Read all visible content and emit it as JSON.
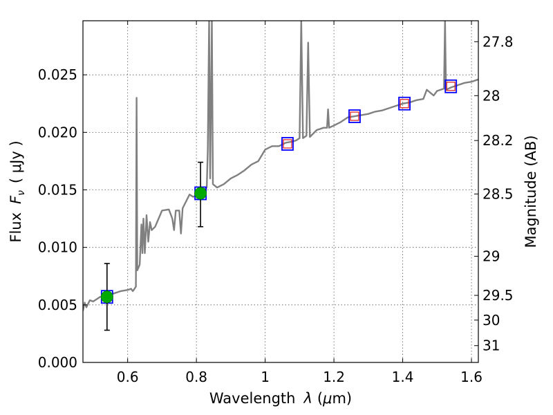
{
  "chart_data": {
    "type": "scatter",
    "xlabel_text": "Wavelength",
    "xlabel_symbol": "λ",
    "xlabel_unit_open": "(",
    "xlabel_unit_mu": "μ",
    "xlabel_unit_rest": "m)",
    "ylabel_text": "Flux",
    "ylabel_symbol": "F",
    "ylabel_sub": "ν",
    "ylabel_unit": "( μJy )",
    "y2label": "Magnitude (AB)",
    "xlim": [
      0.47,
      1.62
    ],
    "ylim": [
      0.0,
      0.0297
    ],
    "grid": true,
    "x_ticks": [
      {
        "value": 0.6,
        "label": "0.6"
      },
      {
        "value": 0.8,
        "label": "0.8"
      },
      {
        "value": 1.0,
        "label": "1"
      },
      {
        "value": 1.2,
        "label": "1.2"
      },
      {
        "value": 1.4,
        "label": "1.4"
      },
      {
        "value": 1.6,
        "label": "1.6"
      }
    ],
    "y_ticks": [
      {
        "value": 0.0,
        "label": "0.000"
      },
      {
        "value": 0.005,
        "label": "0.005"
      },
      {
        "value": 0.01,
        "label": "0.010"
      },
      {
        "value": 0.015,
        "label": "0.015"
      },
      {
        "value": 0.02,
        "label": "0.020"
      },
      {
        "value": 0.025,
        "label": "0.025"
      }
    ],
    "y2_ticks": [
      {
        "label": "27.8",
        "flux": 0.02788
      },
      {
        "label": "28",
        "flux": 0.02319
      },
      {
        "label": "28.2",
        "flux": 0.01929
      },
      {
        "label": "28.5",
        "flux": 0.01464
      },
      {
        "label": "29",
        "flux": 0.00923
      },
      {
        "label": "29.5",
        "flux": 0.00583
      },
      {
        "label": "30",
        "flux": 0.00368
      },
      {
        "label": "31",
        "flux": 0.00146
      }
    ],
    "template_spectrum": {
      "color": "#808080",
      "points": [
        [
          0.47,
          0.0045
        ],
        [
          0.475,
          0.0052
        ],
        [
          0.48,
          0.0048
        ],
        [
          0.49,
          0.0054
        ],
        [
          0.5,
          0.0053
        ],
        [
          0.52,
          0.0057
        ],
        [
          0.54,
          0.0058
        ],
        [
          0.56,
          0.006
        ],
        [
          0.58,
          0.0062
        ],
        [
          0.6,
          0.0063
        ],
        [
          0.61,
          0.0064
        ],
        [
          0.615,
          0.0062
        ],
        [
          0.62,
          0.0064
        ],
        [
          0.624,
          0.0066
        ],
        [
          0.626,
          0.023
        ],
        [
          0.628,
          0.008
        ],
        [
          0.635,
          0.0085
        ],
        [
          0.64,
          0.012
        ],
        [
          0.643,
          0.0095
        ],
        [
          0.646,
          0.0125
        ],
        [
          0.65,
          0.0095
        ],
        [
          0.655,
          0.0128
        ],
        [
          0.66,
          0.0105
        ],
        [
          0.665,
          0.0122
        ],
        [
          0.67,
          0.0115
        ],
        [
          0.68,
          0.0118
        ],
        [
          0.69,
          0.0125
        ],
        [
          0.7,
          0.0132
        ],
        [
          0.72,
          0.0133
        ],
        [
          0.73,
          0.0125
        ],
        [
          0.735,
          0.0115
        ],
        [
          0.74,
          0.0132
        ],
        [
          0.75,
          0.0132
        ],
        [
          0.755,
          0.0112
        ],
        [
          0.76,
          0.0134
        ],
        [
          0.77,
          0.014
        ],
        [
          0.78,
          0.0146
        ],
        [
          0.79,
          0.0144
        ],
        [
          0.8,
          0.0145
        ],
        [
          0.81,
          0.0146
        ],
        [
          0.82,
          0.015
        ],
        [
          0.83,
          0.0152
        ],
        [
          0.833,
          0.0185
        ],
        [
          0.837,
          0.0297
        ],
        [
          0.84,
          0.016
        ],
        [
          0.845,
          0.0297
        ],
        [
          0.848,
          0.0155
        ],
        [
          0.86,
          0.0152
        ],
        [
          0.88,
          0.0155
        ],
        [
          0.9,
          0.016
        ],
        [
          0.92,
          0.0163
        ],
        [
          0.94,
          0.0167
        ],
        [
          0.96,
          0.0172
        ],
        [
          0.98,
          0.0175
        ],
        [
          1.0,
          0.0185
        ],
        [
          1.02,
          0.0188
        ],
        [
          1.04,
          0.0188
        ],
        [
          1.06,
          0.0191
        ],
        [
          1.08,
          0.0192
        ],
        [
          1.09,
          0.0193
        ],
        [
          1.1,
          0.0195
        ],
        [
          1.105,
          0.0297
        ],
        [
          1.11,
          0.0195
        ],
        [
          1.12,
          0.0197
        ],
        [
          1.125,
          0.0278
        ],
        [
          1.13,
          0.0196
        ],
        [
          1.15,
          0.0202
        ],
        [
          1.17,
          0.0204
        ],
        [
          1.18,
          0.0204
        ],
        [
          1.183,
          0.022
        ],
        [
          1.186,
          0.0204
        ],
        [
          1.2,
          0.0206
        ],
        [
          1.22,
          0.0209
        ],
        [
          1.24,
          0.0213
        ],
        [
          1.26,
          0.0214
        ],
        [
          1.28,
          0.0215
        ],
        [
          1.3,
          0.0216
        ],
        [
          1.32,
          0.0218
        ],
        [
          1.34,
          0.0219
        ],
        [
          1.36,
          0.0221
        ],
        [
          1.38,
          0.0223
        ],
        [
          1.4,
          0.0225
        ],
        [
          1.42,
          0.0226
        ],
        [
          1.44,
          0.0228
        ],
        [
          1.46,
          0.0229
        ],
        [
          1.47,
          0.0237
        ],
        [
          1.49,
          0.0232
        ],
        [
          1.5,
          0.0236
        ],
        [
          1.52,
          0.0238
        ],
        [
          1.523,
          0.0297
        ],
        [
          1.526,
          0.0237
        ],
        [
          1.54,
          0.0239
        ],
        [
          1.56,
          0.0241
        ],
        [
          1.58,
          0.0243
        ],
        [
          1.6,
          0.0244
        ],
        [
          1.62,
          0.0246
        ]
      ]
    },
    "model_boxes": {
      "color": "#0000ff",
      "points": [
        [
          0.54,
          0.0057
        ],
        [
          0.812,
          0.0147
        ],
        [
          1.065,
          0.019
        ],
        [
          1.26,
          0.0214
        ],
        [
          1.405,
          0.0225
        ],
        [
          1.54,
          0.024
        ]
      ]
    },
    "observed_points": {
      "color": "#00aa00",
      "points": [
        {
          "x": 0.54,
          "y": 0.0057,
          "yerr_low": 0.0028,
          "yerr_high": 0.0086
        },
        {
          "x": 0.812,
          "y": 0.0147,
          "yerr_low": 0.0118,
          "yerr_high": 0.0174
        }
      ]
    },
    "upper_limits": {
      "color": "#dd2222",
      "points": [
        [
          1.065,
          0.019
        ],
        [
          1.26,
          0.0214
        ],
        [
          1.405,
          0.0225
        ],
        [
          1.54,
          0.024
        ]
      ]
    }
  }
}
